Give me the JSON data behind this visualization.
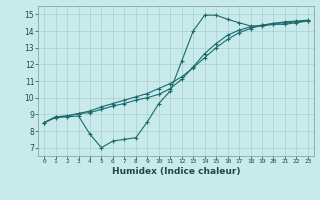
{
  "xlabel": "Humidex (Indice chaleur)",
  "bg_color": "#c8eaea",
  "grid_color": "#aacece",
  "line_color": "#1a6b6b",
  "xlim": [
    -0.5,
    23.5
  ],
  "ylim": [
    6.5,
    15.5
  ],
  "xticks": [
    0,
    1,
    2,
    3,
    4,
    5,
    6,
    7,
    8,
    9,
    10,
    11,
    12,
    13,
    14,
    15,
    16,
    17,
    18,
    19,
    20,
    21,
    22,
    23
  ],
  "yticks": [
    7,
    8,
    9,
    10,
    11,
    12,
    13,
    14,
    15
  ],
  "line1_x": [
    0,
    1,
    2,
    3,
    4,
    5,
    6,
    7,
    8,
    9,
    10,
    11,
    12,
    13,
    14,
    15,
    16,
    17,
    18,
    19,
    20,
    21,
    22,
    23
  ],
  "line1_y": [
    8.5,
    8.8,
    8.85,
    8.9,
    7.8,
    7.0,
    7.4,
    7.5,
    7.6,
    8.55,
    9.65,
    10.4,
    12.2,
    14.0,
    14.95,
    14.95,
    14.7,
    14.5,
    14.3,
    14.3,
    14.4,
    14.4,
    14.5,
    14.6
  ],
  "line2_x": [
    0,
    1,
    2,
    3,
    4,
    5,
    6,
    7,
    8,
    9,
    10,
    11,
    12,
    13,
    14,
    15,
    16,
    17,
    18,
    19,
    20,
    21,
    22,
    23
  ],
  "line2_y": [
    8.5,
    8.85,
    8.9,
    9.05,
    9.1,
    9.3,
    9.5,
    9.65,
    9.85,
    10.0,
    10.2,
    10.55,
    11.1,
    11.85,
    12.65,
    13.25,
    13.75,
    14.05,
    14.25,
    14.35,
    14.45,
    14.5,
    14.55,
    14.6
  ],
  "line3_x": [
    0,
    1,
    2,
    3,
    4,
    5,
    6,
    7,
    8,
    9,
    10,
    11,
    12,
    13,
    14,
    15,
    16,
    17,
    18,
    19,
    20,
    21,
    22,
    23
  ],
  "line3_y": [
    8.5,
    8.85,
    8.9,
    9.05,
    9.2,
    9.45,
    9.65,
    9.85,
    10.05,
    10.25,
    10.55,
    10.85,
    11.25,
    11.8,
    12.4,
    13.0,
    13.5,
    13.9,
    14.15,
    14.35,
    14.45,
    14.55,
    14.6,
    14.65
  ]
}
